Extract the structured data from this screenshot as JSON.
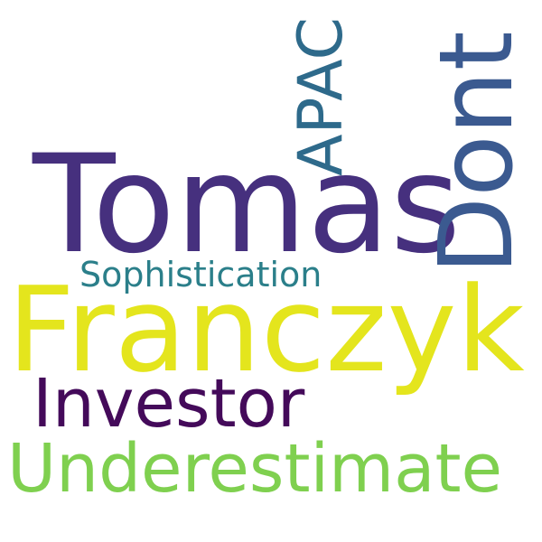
{
  "words": [
    {
      "text": "Tomas",
      "color": "#46307e"
    },
    {
      "text": "Franczyk",
      "color": "#e4e51d"
    },
    {
      "text": "Underestimate",
      "color": "#7fd04f"
    },
    {
      "text": "Investor",
      "color": "#440a5a"
    },
    {
      "text": "Sophistication",
      "color": "#2b7f8a"
    },
    {
      "text": "APAC",
      "color": "#2e6a8b"
    },
    {
      "text": "Dont",
      "color": "#3b5a90"
    }
  ]
}
